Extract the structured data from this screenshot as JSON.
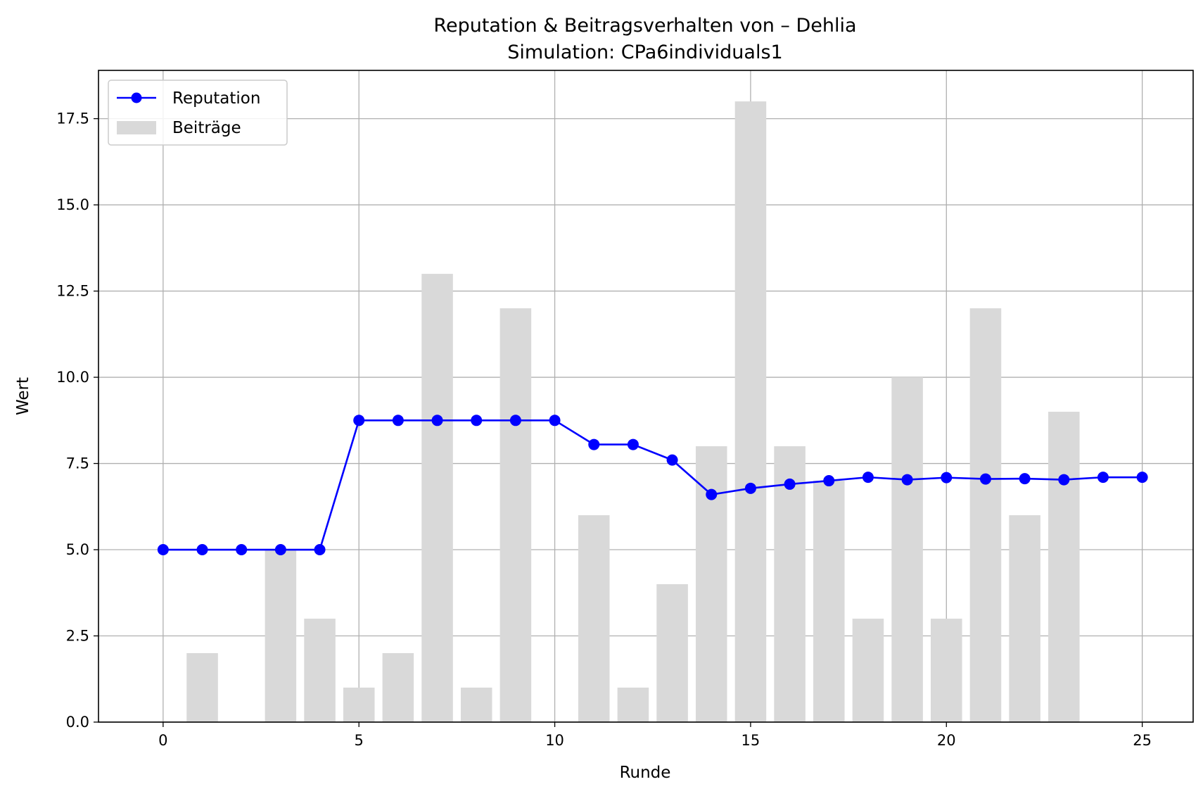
{
  "chart_data": {
    "type": "bar+line",
    "title": "Reputation & Beitragsverhalten von – Dehlia",
    "subtitle": "Simulation: CPa6individuals1",
    "xlabel": "Runde",
    "ylabel": "Wert",
    "xlim": [
      -1.65,
      26.3
    ],
    "ylim": [
      0,
      18.9
    ],
    "x_ticks": [
      0,
      5,
      10,
      15,
      20,
      25
    ],
    "y_ticks": [
      0.0,
      2.5,
      5.0,
      7.5,
      10.0,
      12.5,
      15.0,
      17.5
    ],
    "y_tick_labels": [
      "0.0",
      "2.5",
      "5.0",
      "7.5",
      "10.0",
      "12.5",
      "15.0",
      "17.5"
    ],
    "grid": true,
    "legend_position": "upper-left",
    "x": [
      0,
      1,
      2,
      3,
      4,
      5,
      6,
      7,
      8,
      9,
      10,
      11,
      12,
      13,
      14,
      15,
      16,
      17,
      18,
      19,
      20,
      21,
      22,
      23,
      24,
      25
    ],
    "series": [
      {
        "name": "Reputation",
        "kind": "line",
        "color": "#0000ff",
        "marker": "circle",
        "values": [
          5.0,
          5.0,
          5.0,
          5.0,
          5.0,
          8.75,
          8.75,
          8.75,
          8.75,
          8.75,
          8.75,
          8.05,
          8.05,
          7.6,
          6.6,
          6.78,
          6.9,
          7.0,
          7.1,
          7.03,
          7.09,
          7.05,
          7.06,
          7.03,
          7.1,
          7.1
        ]
      },
      {
        "name": "Beiträge",
        "kind": "bar",
        "color": "#d9d9d9",
        "values": [
          0,
          2,
          0,
          5,
          3,
          1,
          2,
          13,
          1,
          12,
          0,
          6,
          1,
          4,
          8,
          18,
          8,
          7,
          3,
          10,
          3,
          12,
          6,
          9,
          0,
          0
        ]
      }
    ]
  }
}
